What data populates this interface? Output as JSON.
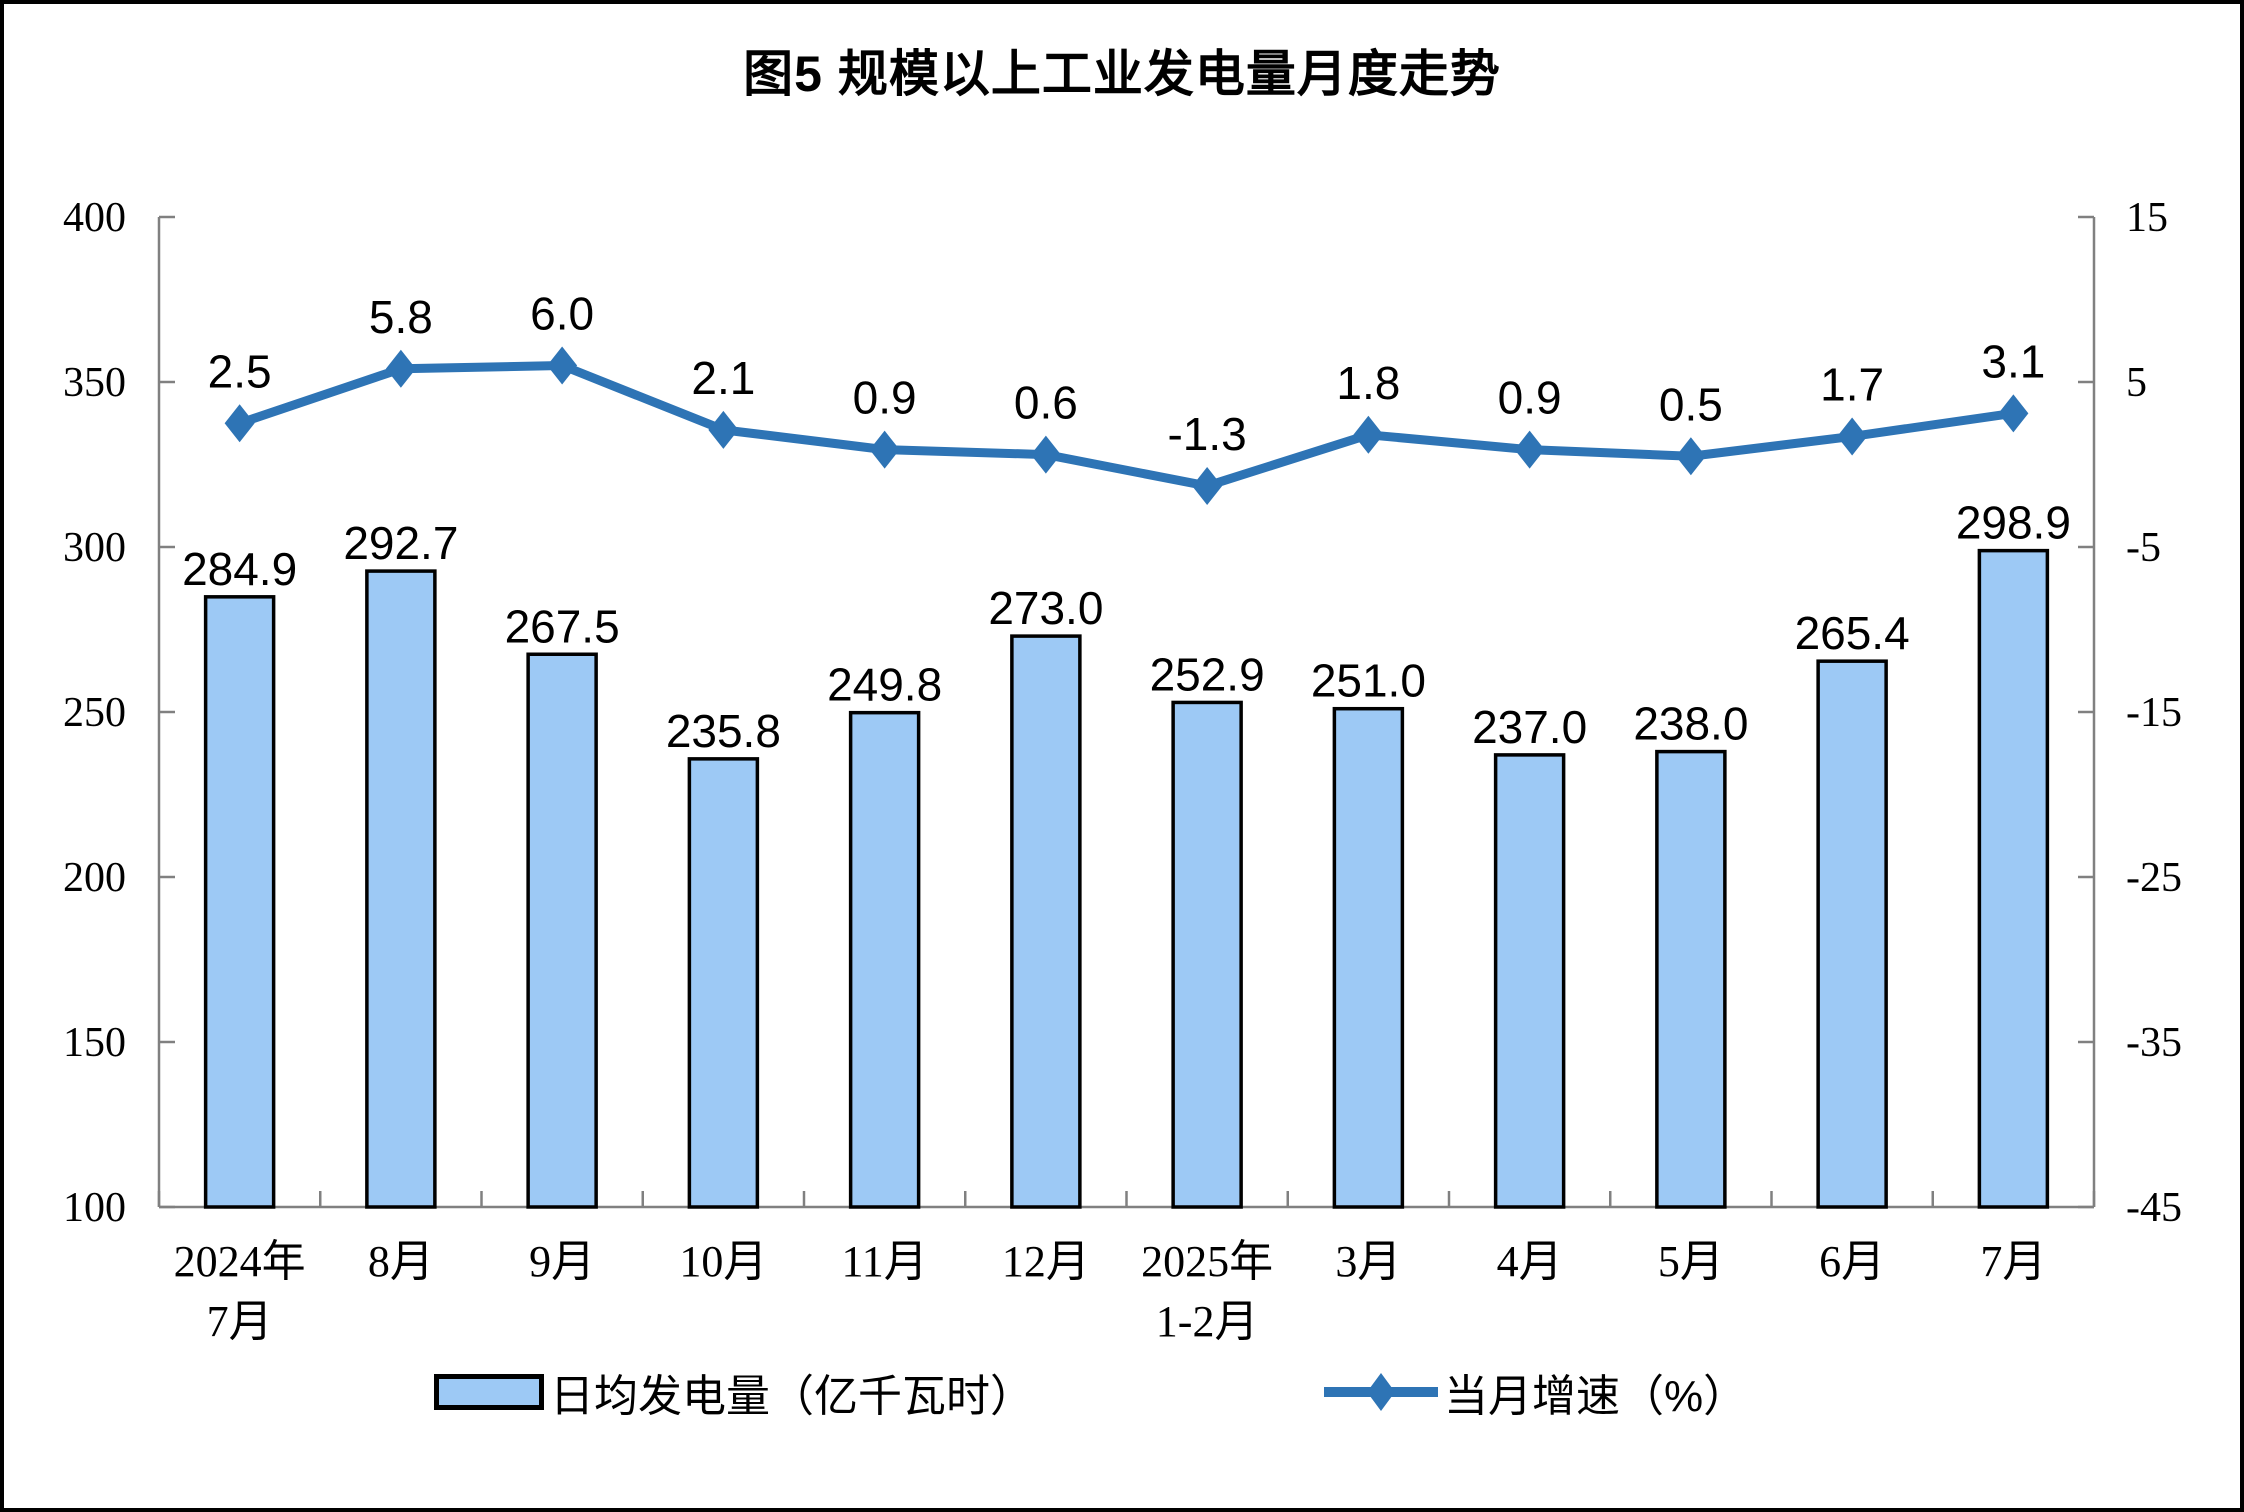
{
  "figure": {
    "title": "图5  规模以上工业发电量月度走势"
  },
  "chart_data": {
    "type": "combo bar+line",
    "title": "图5  规模以上工业发电量月度走势",
    "categories": [
      [
        "2024年",
        "7月"
      ],
      [
        "8月"
      ],
      [
        "9月"
      ],
      [
        "10月"
      ],
      [
        "11月"
      ],
      [
        "12月"
      ],
      [
        "2025年",
        "1-2月"
      ],
      [
        "3月"
      ],
      [
        "4月"
      ],
      [
        "5月"
      ],
      [
        "6月"
      ],
      [
        "7月"
      ]
    ],
    "series": [
      {
        "name": "日均发电量（亿千瓦时）",
        "type": "bar",
        "axis": "left",
        "values": [
          284.9,
          292.7,
          267.5,
          235.8,
          249.8,
          273.0,
          252.9,
          251.0,
          237.0,
          238.0,
          265.4,
          298.9
        ],
        "labels": [
          "284.9",
          "292.7",
          "267.5",
          "235.8",
          "249.8",
          "273.0",
          "252.9",
          "251.0",
          "237.0",
          "238.0",
          "265.4",
          "298.9"
        ],
        "fill": "#9DC9F5",
        "stroke": "#000000"
      },
      {
        "name": "当月增速（%）",
        "type": "line",
        "axis": "right",
        "values": [
          2.5,
          5.8,
          6.0,
          2.1,
          0.9,
          0.6,
          -1.3,
          1.8,
          0.9,
          0.5,
          1.7,
          3.1
        ],
        "labels": [
          "2.5",
          "5.8",
          "6.0",
          "2.1",
          "0.9",
          "0.6",
          "-1.3",
          "1.8",
          "0.9",
          "0.5",
          "1.7",
          "3.1"
        ],
        "color": "#2E74B5",
        "marker": "diamond"
      }
    ],
    "left_axis": {
      "min": 100,
      "max": 400,
      "step": 50,
      "tick_labels": [
        "400",
        "350",
        "300",
        "250",
        "200",
        "150",
        "100"
      ]
    },
    "right_axis": {
      "min": -45,
      "max": 15,
      "step": 10,
      "tick_labels": [
        "15",
        "5",
        "-5",
        "-15",
        "-25",
        "-35",
        "-45"
      ]
    },
    "grid": false,
    "legend_position": "bottom",
    "colors": {
      "bar_fill": "#9DC9F5",
      "bar_stroke": "#000000",
      "line": "#2E74B5",
      "axis": "#808080",
      "text": "#000000",
      "background": "#FFFFFF"
    }
  },
  "legend": {
    "bar_label": "日均发电量（亿千瓦时）",
    "line_label": "当月增速（%）"
  }
}
